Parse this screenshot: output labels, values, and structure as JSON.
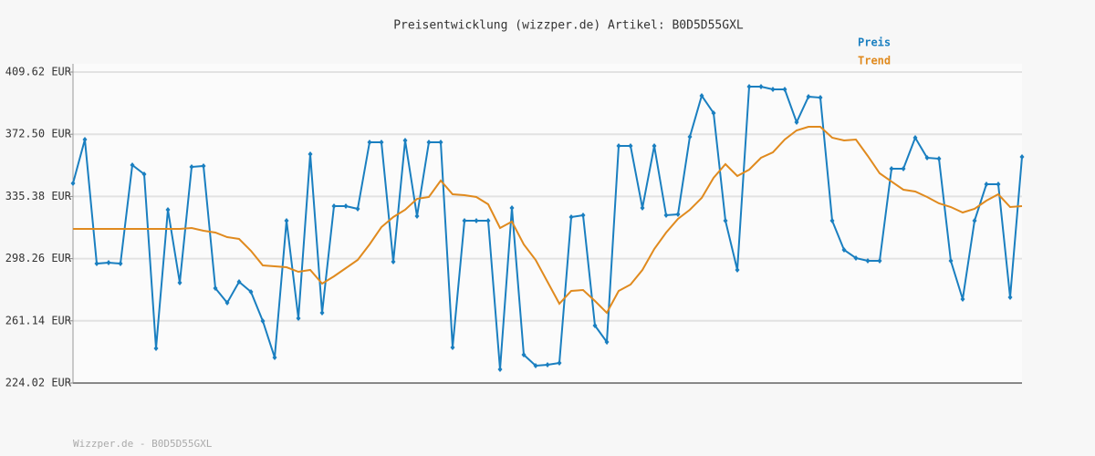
{
  "chart_data": {
    "type": "line",
    "title": "Preisentwicklung (wizzper.de) Artikel: B0D5D55GXL",
    "footer": "Wizzper.de - B0D5D55GXL",
    "ylim": [
      224.02,
      409.62
    ],
    "yticks": [
      {
        "value": 224.02,
        "label": "224.02 EUR"
      },
      {
        "value": 261.14,
        "label": "261.14 EUR"
      },
      {
        "value": 298.26,
        "label": "298.26 EUR"
      },
      {
        "value": 335.38,
        "label": "335.38 EUR"
      },
      {
        "value": 372.5,
        "label": "372.50 EUR"
      },
      {
        "value": 409.62,
        "label": "409.62 EUR"
      }
    ],
    "grid": true,
    "legend": "top-right",
    "series": [
      {
        "name": "Preis",
        "color": "#1a7fc0",
        "markers": true,
        "values": [
          343.22,
          369.34,
          295.32,
          295.87,
          295.32,
          354.1,
          348.66,
          244.7,
          327.43,
          283.89,
          353.01,
          353.56,
          280.63,
          271.92,
          284.44,
          278.45,
          261.03,
          239.26,
          320.9,
          262.66,
          360.63,
          265.93,
          329.61,
          329.61,
          327.98,
          367.71,
          367.71,
          296.41,
          368.8,
          323.62,
          367.71,
          367.71,
          245.25,
          320.9,
          320.9,
          320.9,
          232.18,
          328.52,
          240.89,
          234.36,
          234.91,
          235.99,
          323.08,
          324.17,
          258.31,
          248.51,
          365.53,
          365.53,
          328.52,
          365.53,
          324.17,
          324.71,
          370.98,
          395.47,
          385.13,
          320.9,
          291.51,
          400.91,
          400.91,
          399.28,
          399.28,
          379.68,
          394.92,
          394.38,
          320.9,
          303.48,
          298.59,
          296.95,
          296.95,
          351.93,
          351.93,
          370.43,
          358.46,
          357.91,
          296.95,
          274.09,
          320.9,
          342.67,
          342.67,
          275.18,
          359.0
        ]
      },
      {
        "name": "Trend",
        "color": "#e08a1e",
        "markers": false,
        "values": [
          316.0,
          316.0,
          316.0,
          316.0,
          316.0,
          316.0,
          316.0,
          316.0,
          316.0,
          316.0,
          316.55,
          314.91,
          313.83,
          311.1,
          310.02,
          302.94,
          294.23,
          293.69,
          293.14,
          290.42,
          291.51,
          283.35,
          287.7,
          292.6,
          297.5,
          306.75,
          317.09,
          323.08,
          327.43,
          333.96,
          335.05,
          344.85,
          336.68,
          336.14,
          335.05,
          330.7,
          316.55,
          320.36,
          306.75,
          297.5,
          284.44,
          271.37,
          278.99,
          279.54,
          273.0,
          265.93,
          278.99,
          282.8,
          291.51,
          304.03,
          313.83,
          322.0,
          327.43,
          334.51,
          346.48,
          354.65,
          347.57,
          351.38,
          358.46,
          361.72,
          369.34,
          374.78,
          376.96,
          376.96,
          370.43,
          368.8,
          369.34,
          359.55,
          349.2,
          344.3,
          339.41,
          338.32,
          335.05,
          331.24,
          329.06,
          325.8,
          327.98,
          332.88,
          336.68,
          329.06,
          329.61
        ]
      }
    ]
  }
}
